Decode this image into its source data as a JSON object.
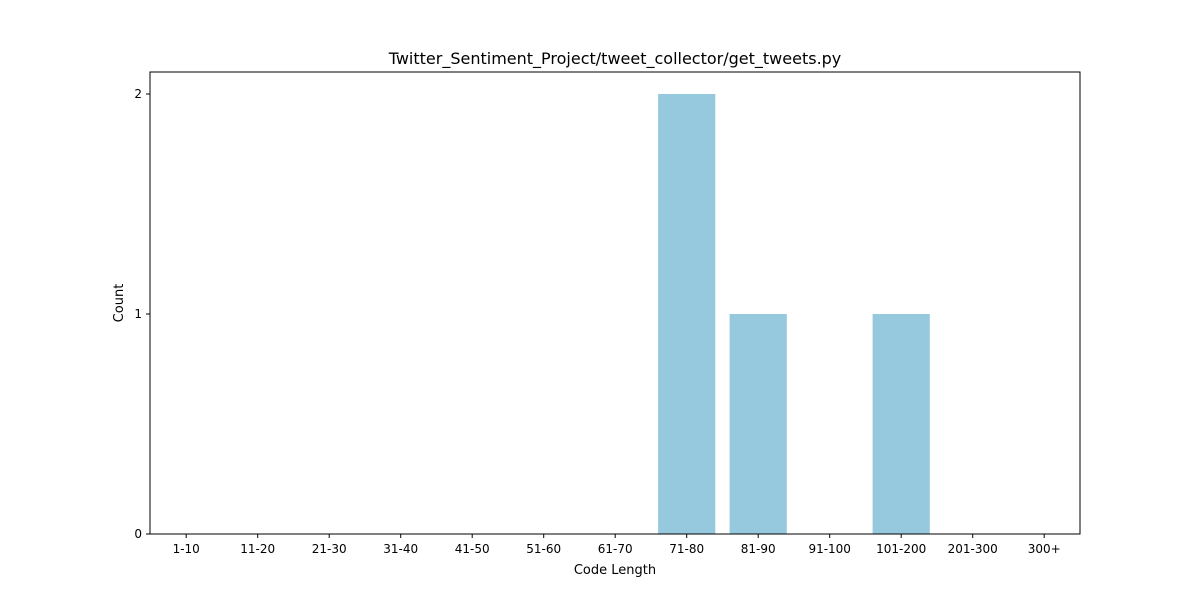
{
  "chart_data": {
    "type": "bar",
    "title": "Twitter_Sentiment_Project/tweet_collector/get_tweets.py",
    "xlabel": "Code Length",
    "ylabel": "Count",
    "categories": [
      "1-10",
      "11-20",
      "21-30",
      "31-40",
      "41-50",
      "51-60",
      "61-70",
      "71-80",
      "81-90",
      "91-100",
      "101-200",
      "201-300",
      "300+"
    ],
    "values": [
      0,
      0,
      0,
      0,
      0,
      0,
      0,
      2,
      1,
      0,
      1,
      0,
      0
    ],
    "ylim": [
      0,
      2.1
    ],
    "yticks": [
      0,
      1,
      2
    ],
    "grid": false,
    "legend": "none",
    "bar_color": "#96c9dd"
  }
}
